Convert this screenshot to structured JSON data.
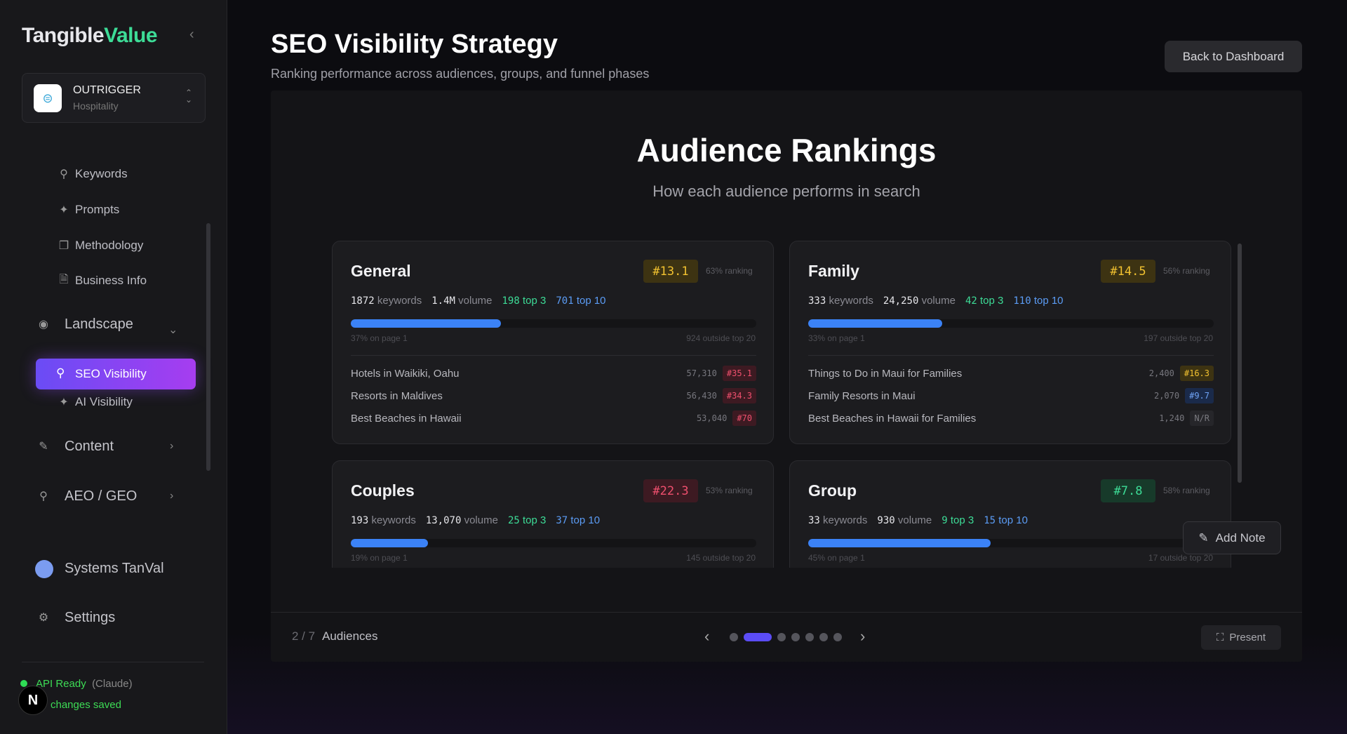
{
  "sidebar": {
    "logo": {
      "part1": "Tangible",
      "part2": "Value"
    },
    "org": {
      "name": "OUTRIGGER",
      "industry": "Hospitality"
    },
    "items": [
      {
        "label": "Keywords",
        "icon": "search-icon"
      },
      {
        "label": "Prompts",
        "icon": "sparkles-icon"
      },
      {
        "label": "Methodology",
        "icon": "clipboard-icon"
      },
      {
        "label": "Business Info",
        "icon": "document-icon"
      }
    ],
    "landscape": "Landscape",
    "landscape_items": [
      {
        "label": "SEO Visibility",
        "active": true
      },
      {
        "label": "AI Visibility"
      }
    ],
    "content": "Content",
    "aeo": "AEO / GEO",
    "user": "Systems TanVal",
    "settings": "Settings",
    "status": {
      "api": "API Ready",
      "provider": "(Claude)",
      "saved": "changes saved",
      "avatar_letter": "N"
    }
  },
  "header": {
    "title": "SEO Visibility Strategy",
    "subtitle": "Ranking performance across audiences, groups, and funnel phases",
    "back_label": "Back to Dashboard"
  },
  "slide": {
    "title": "Audience Rankings",
    "subtitle": "How each audience performs in search",
    "cards": [
      {
        "name": "General",
        "avg": "#13.1",
        "avg_color": "yellow",
        "ranking": "63% ranking",
        "keywords": "1872",
        "kw_label": "keywords",
        "volume": "1.4M",
        "vol_label": "volume",
        "top3": "198",
        "top3_label": "top 3",
        "top10": "701",
        "top10_label": "top 10",
        "page1_pct": 37,
        "page1": "37% on page 1",
        "outside": "924 outside top 20",
        "rows": [
          {
            "kw": "Hotels in Waikiki, Oahu",
            "vol": "57,310",
            "rank": "#35.1",
            "c": "red"
          },
          {
            "kw": "Resorts in Maldives",
            "vol": "56,430",
            "rank": "#34.3",
            "c": "red"
          },
          {
            "kw": "Best Beaches in Hawaii",
            "vol": "53,040",
            "rank": "#70",
            "c": "red"
          }
        ]
      },
      {
        "name": "Family",
        "avg": "#14.5",
        "avg_color": "yellow",
        "ranking": "56% ranking",
        "keywords": "333",
        "kw_label": "keywords",
        "volume": "24,250",
        "vol_label": "volume",
        "top3": "42",
        "top3_label": "top 3",
        "top10": "110",
        "top10_label": "top 10",
        "page1_pct": 33,
        "page1": "33% on page 1",
        "outside": "197 outside top 20",
        "rows": [
          {
            "kw": "Things to Do in Maui for Families",
            "vol": "2,400",
            "rank": "#16.3",
            "c": "yellow"
          },
          {
            "kw": "Family Resorts in Maui",
            "vol": "2,070",
            "rank": "#9.7",
            "c": "blue"
          },
          {
            "kw": "Best Beaches in Hawaii for Families",
            "vol": "1,240",
            "rank": "N/R",
            "c": "gray"
          }
        ]
      },
      {
        "name": "Couples",
        "avg": "#22.3",
        "avg_color": "red",
        "ranking": "53% ranking",
        "keywords": "193",
        "kw_label": "keywords",
        "volume": "13,070",
        "vol_label": "volume",
        "top3": "25",
        "top3_label": "top 3",
        "top10": "37",
        "top10_label": "top 10",
        "page1_pct": 19,
        "page1": "19% on page 1",
        "outside": "145 outside top 20",
        "rows": []
      },
      {
        "name": "Group",
        "avg": "#7.8",
        "avg_color": "green",
        "ranking": "58% ranking",
        "keywords": "33",
        "kw_label": "keywords",
        "volume": "930",
        "vol_label": "volume",
        "top3": "9",
        "top3_label": "top 3",
        "top10": "15",
        "top10_label": "top 10",
        "page1_pct": 45,
        "page1": "45% on page 1",
        "outside": "17 outside top 20",
        "rows": []
      }
    ]
  },
  "add_note": "Add Note",
  "footer": {
    "page": "2 / 7",
    "section": "Audiences",
    "total_slides": 7,
    "current_slide": 2,
    "present": "Present"
  },
  "colors": {
    "accent": "#5b4cf5",
    "active_gradient_start": "#6a4cf5",
    "active_gradient_end": "#a63df0",
    "logo_accent": "#3ddc97",
    "bar": "#3b82f6"
  }
}
